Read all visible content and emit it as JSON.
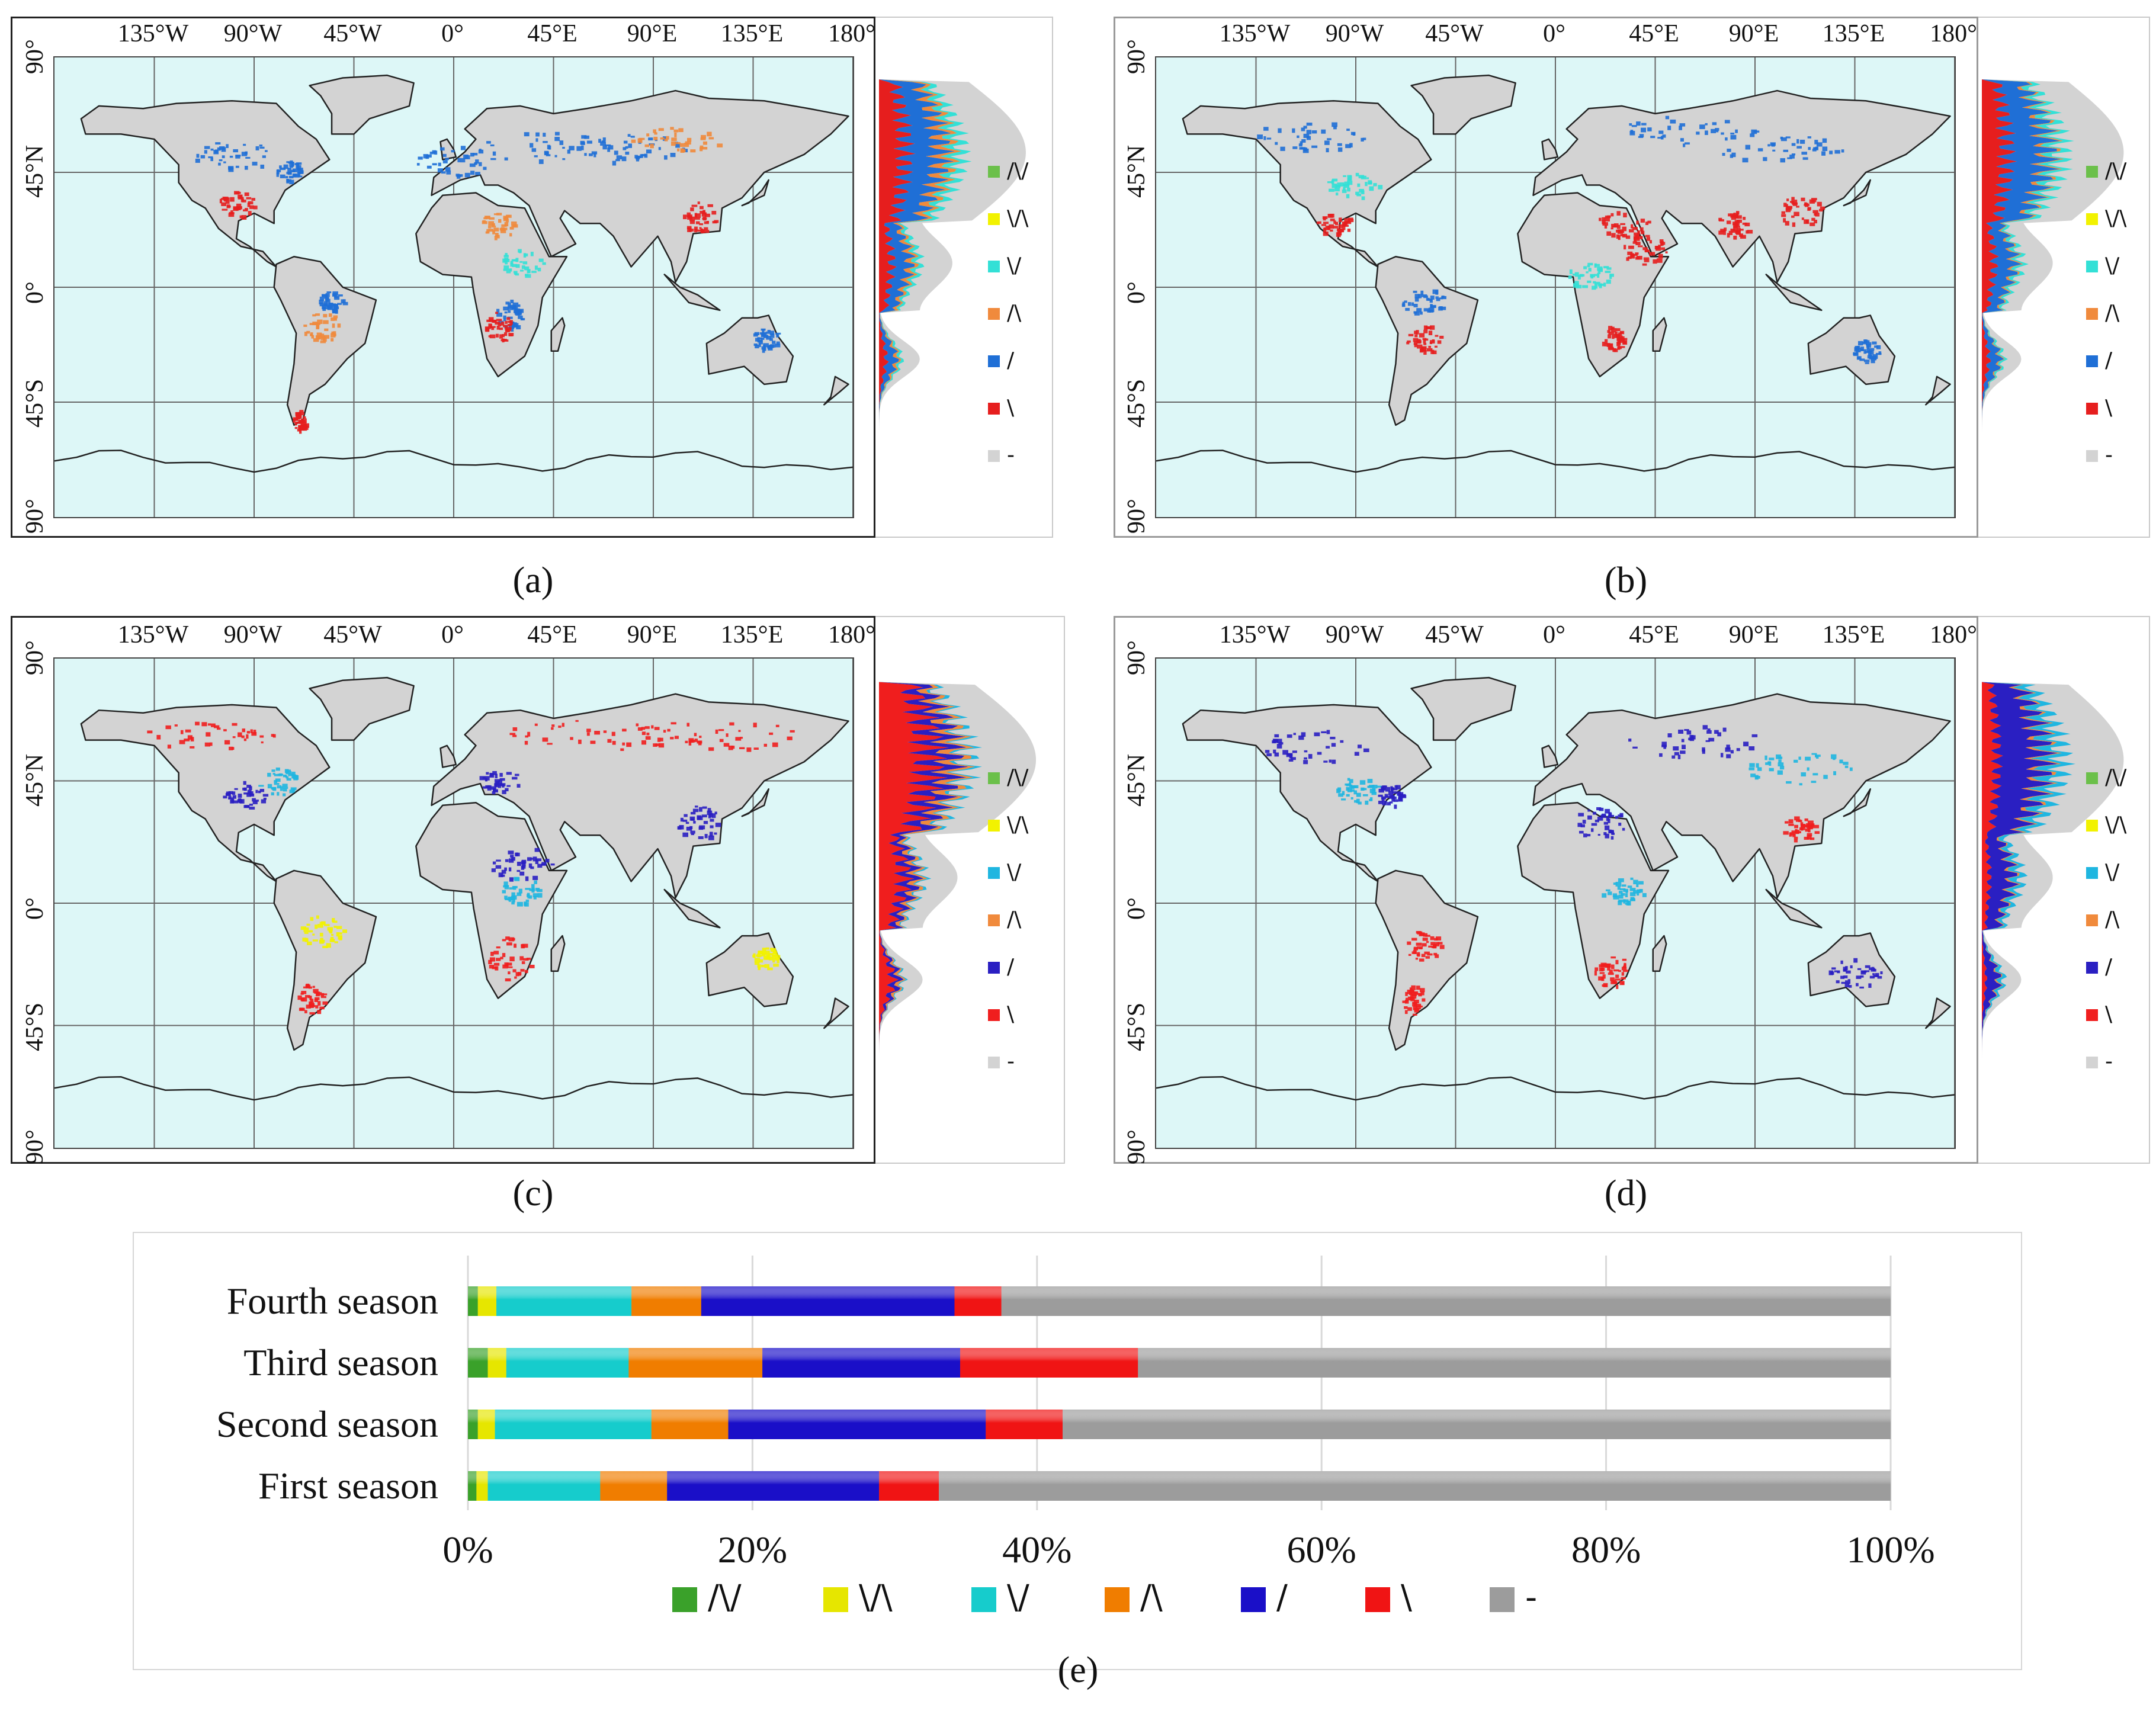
{
  "colors": {
    "ocean": "#ddf7f7",
    "land_no_trend": "#d3d3d3",
    "grid": "#666666"
  },
  "panels": [
    {
      "id": "a",
      "label": "(a)",
      "lon_ticks": [
        "135°W",
        "90°W",
        "45°W",
        "0°",
        "45°E",
        "90°E",
        "135°E",
        "180°"
      ],
      "lat_ticks": [
        "90°",
        "45°N",
        "0°",
        "45°S",
        "90°"
      ],
      "legend": [
        {
          "symbol": "/\\/",
          "color": "#6bc04a"
        },
        {
          "symbol": "\\/\\",
          "color": "#f2f200"
        },
        {
          "symbol": "\\/",
          "color": "#33e0d6"
        },
        {
          "symbol": "/\\",
          "color": "#f08a3c"
        },
        {
          "symbol": "/",
          "color": "#1f6fd6"
        },
        {
          "symbol": "\\",
          "color": "#e61e1e"
        },
        {
          "symbol": "-",
          "color": "#d3d3d3"
        }
      ]
    },
    {
      "id": "b",
      "label": "(b)",
      "lon_ticks": [
        "135°W",
        "90°W",
        "45°W",
        "0°",
        "45°E",
        "90°E",
        "135°E",
        "180°"
      ],
      "lat_ticks": [
        "90°",
        "45°N",
        "0°",
        "45°S",
        "90°"
      ],
      "legend": [
        {
          "symbol": "/\\/",
          "color": "#6bc04a"
        },
        {
          "symbol": "\\/\\",
          "color": "#f2f200"
        },
        {
          "symbol": "\\/",
          "color": "#33e0d6"
        },
        {
          "symbol": "/\\",
          "color": "#f08a3c"
        },
        {
          "symbol": "/",
          "color": "#1f6fd6"
        },
        {
          "symbol": "\\",
          "color": "#e61e1e"
        },
        {
          "symbol": "-",
          "color": "#d3d3d3"
        }
      ]
    },
    {
      "id": "c",
      "label": "(c)",
      "lon_ticks": [
        "135°W",
        "90°W",
        "45°W",
        "0°",
        "45°E",
        "90°E",
        "135°E",
        "180°"
      ],
      "lat_ticks": [
        "90°",
        "45°N",
        "0°",
        "45°S",
        "90°"
      ],
      "legend": [
        {
          "symbol": "/\\/",
          "color": "#6bc04a"
        },
        {
          "symbol": "\\/\\",
          "color": "#f2f200"
        },
        {
          "symbol": "\\/",
          "color": "#1fb6e0"
        },
        {
          "symbol": "/\\",
          "color": "#f08a3c"
        },
        {
          "symbol": "/",
          "color": "#2a1fc2"
        },
        {
          "symbol": "\\",
          "color": "#f01e1e"
        },
        {
          "symbol": "-",
          "color": "#d3d3d3"
        }
      ]
    },
    {
      "id": "d",
      "label": "(d)",
      "lon_ticks": [
        "135°W",
        "90°W",
        "45°W",
        "0°",
        "45°E",
        "90°E",
        "135°E",
        "180°"
      ],
      "lat_ticks": [
        "90°",
        "45°N",
        "0°",
        "45°S",
        "90°"
      ],
      "legend": [
        {
          "symbol": "/\\/",
          "color": "#6bc04a"
        },
        {
          "symbol": "\\/\\",
          "color": "#f2f200"
        },
        {
          "symbol": "\\/",
          "color": "#1fb6e0"
        },
        {
          "symbol": "/\\",
          "color": "#f08a3c"
        },
        {
          "symbol": "/",
          "color": "#2a1fc2"
        },
        {
          "symbol": "\\",
          "color": "#f01e1e"
        },
        {
          "symbol": "-",
          "color": "#d3d3d3"
        }
      ]
    }
  ],
  "chart_data": {
    "type": "bar",
    "orientation": "horizontal",
    "stacked": true,
    "label": "(e)",
    "categories": [
      "Fourth season",
      "Third season",
      "Second season",
      "First season"
    ],
    "x_ticks": [
      "0%",
      "20%",
      "40%",
      "60%",
      "80%",
      "100%"
    ],
    "xlim": [
      0,
      100
    ],
    "grid": true,
    "legend_position": "bottom",
    "series": [
      {
        "name": "/\\/",
        "color": "#3aa12a",
        "values": [
          0.7,
          1.4,
          0.7,
          0.6
        ]
      },
      {
        "name": "\\/\\",
        "color": "#e6e600",
        "values": [
          1.3,
          1.3,
          1.2,
          0.8
        ]
      },
      {
        "name": "\\/",
        "color": "#16cccc",
        "values": [
          9.5,
          8.6,
          11.0,
          7.9
        ]
      },
      {
        "name": "/\\",
        "color": "#f07d00",
        "values": [
          4.9,
          9.4,
          5.4,
          4.7
        ]
      },
      {
        "name": "/",
        "color": "#1a0fc8",
        "values": [
          17.8,
          13.9,
          18.1,
          14.9
        ]
      },
      {
        "name": "\\",
        "color": "#f01414",
        "values": [
          3.3,
          12.5,
          5.4,
          4.2
        ]
      },
      {
        "name": "-",
        "color": "#9c9c9c",
        "values": [
          62.5,
          52.9,
          58.2,
          66.9
        ]
      }
    ]
  }
}
